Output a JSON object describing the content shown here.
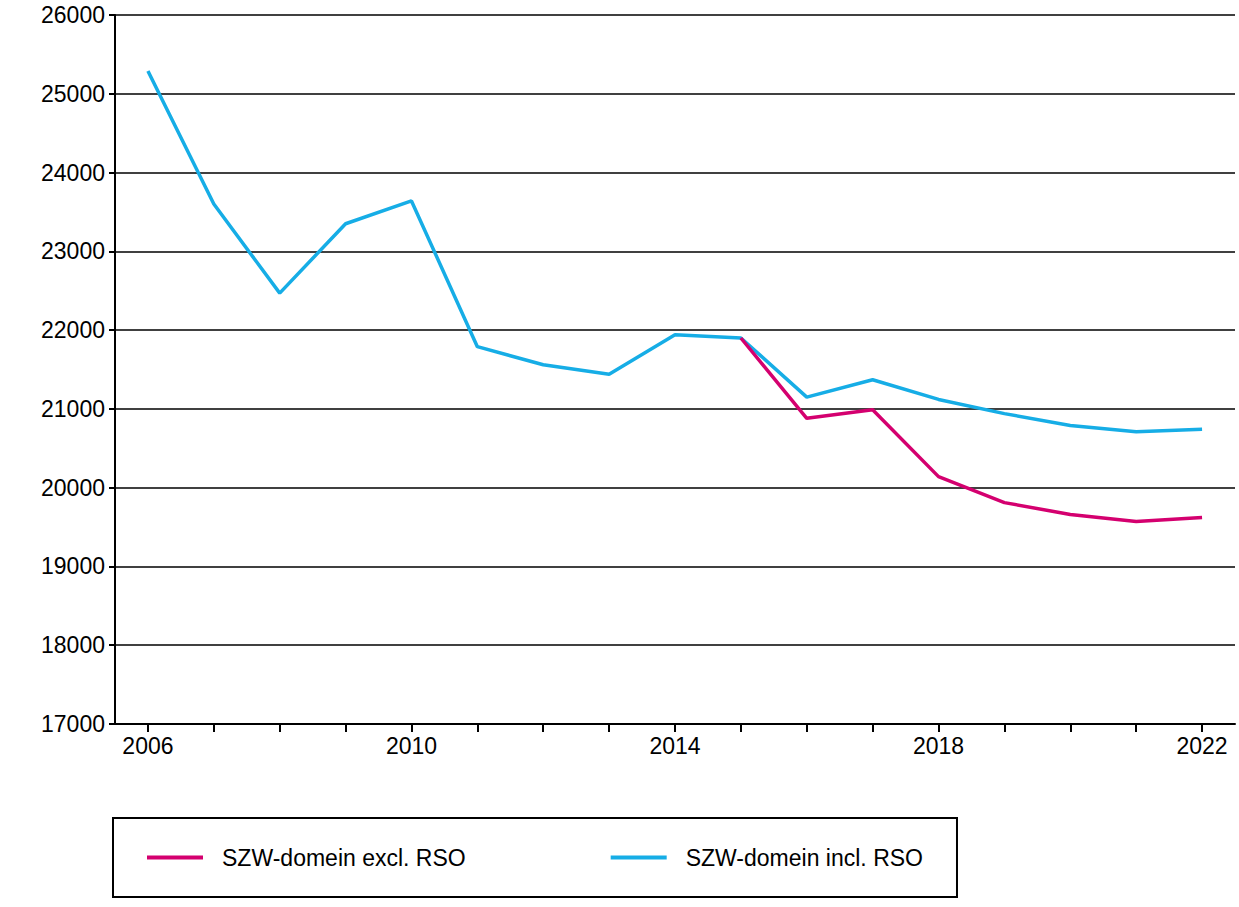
{
  "chart_data": {
    "type": "line",
    "categories": [
      "2006",
      null,
      null,
      null,
      "2010",
      null,
      null,
      null,
      "2014",
      null,
      null,
      null,
      "2018",
      null,
      null,
      null,
      "2022"
    ],
    "series": [
      {
        "name": "SZW-domein excl. RSO",
        "color": "#d4006f",
        "values": [
          null,
          null,
          null,
          null,
          null,
          null,
          null,
          null,
          null,
          21900,
          20880,
          20990,
          20140,
          19810,
          19660,
          19570,
          19620
        ]
      },
      {
        "name": "SZW-domein incl. RSO",
        "color": "#16ade6",
        "values": [
          25290,
          23600,
          22470,
          23350,
          23640,
          21790,
          21560,
          21440,
          21940,
          21900,
          21150,
          21370,
          21120,
          20940,
          20790,
          20710,
          20740
        ]
      }
    ],
    "ylim": [
      17000,
      26000
    ],
    "yticks": [
      17000,
      18000,
      19000,
      20000,
      21000,
      22000,
      23000,
      24000,
      25000,
      26000
    ],
    "grid": true,
    "legend": "bottom"
  }
}
